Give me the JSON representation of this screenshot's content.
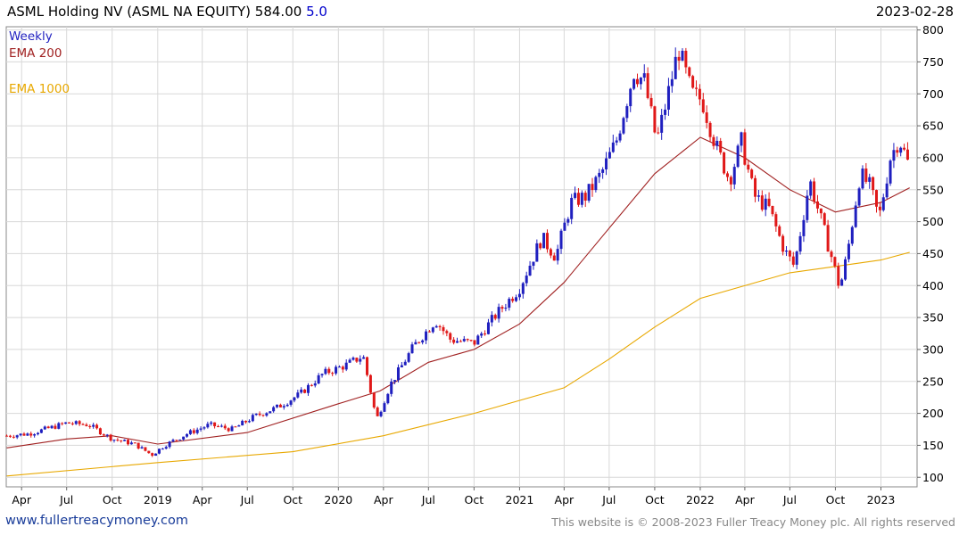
{
  "header": {
    "title": "ASML Holding NV (ASML NA EQUITY) 584.00",
    "change": "5.0",
    "date": "2023-02-28"
  },
  "footer": {
    "link": "www.fullertreacymoney.com",
    "copyright": "This website is © 2008-2023 Fuller Treacy Money plc. All rights reserved"
  },
  "colors": {
    "up": "#1f1fbf",
    "down": "#e01818",
    "ema200": "#a02020",
    "ema1000": "#e8a800",
    "grid": "#d8d8d8"
  },
  "chart_data": {
    "type": "candlestick",
    "frequency_label": "Weekly",
    "y_axis": {
      "range": [
        85,
        805
      ],
      "ticks": [
        100,
        150,
        200,
        250,
        300,
        350,
        400,
        450,
        500,
        550,
        600,
        650,
        700,
        750,
        800
      ],
      "position": "right"
    },
    "x_axis": {
      "range": [
        "2018-03-01",
        "2023-03-15"
      ],
      "ticks": [
        {
          "date": "2018-04-01",
          "label": "Apr"
        },
        {
          "date": "2018-07-01",
          "label": "Jul"
        },
        {
          "date": "2018-10-01",
          "label": "Oct"
        },
        {
          "date": "2019-01-01",
          "label": "2019"
        },
        {
          "date": "2019-04-01",
          "label": "Apr"
        },
        {
          "date": "2019-07-01",
          "label": "Jul"
        },
        {
          "date": "2019-10-01",
          "label": "Oct"
        },
        {
          "date": "2020-01-01",
          "label": "2020"
        },
        {
          "date": "2020-04-01",
          "label": "Apr"
        },
        {
          "date": "2020-07-01",
          "label": "Jul"
        },
        {
          "date": "2020-10-01",
          "label": "Oct"
        },
        {
          "date": "2021-01-01",
          "label": "2021"
        },
        {
          "date": "2021-04-01",
          "label": "Apr"
        },
        {
          "date": "2021-07-01",
          "label": "Jul"
        },
        {
          "date": "2021-10-01",
          "label": "Oct"
        },
        {
          "date": "2022-01-01",
          "label": "2022"
        },
        {
          "date": "2022-04-01",
          "label": "Apr"
        },
        {
          "date": "2022-07-01",
          "label": "Jul"
        },
        {
          "date": "2022-10-01",
          "label": "Oct"
        },
        {
          "date": "2023-01-01",
          "label": "2023"
        }
      ]
    },
    "price_path": [
      {
        "date": "2018-03-02",
        "close": 165
      },
      {
        "date": "2018-04-15",
        "close": 168
      },
      {
        "date": "2018-06-01",
        "close": 178
      },
      {
        "date": "2018-07-01",
        "close": 185
      },
      {
        "date": "2018-08-15",
        "close": 182
      },
      {
        "date": "2018-10-01",
        "close": 160
      },
      {
        "date": "2018-11-15",
        "close": 152
      },
      {
        "date": "2018-12-20",
        "close": 135
      },
      {
        "date": "2019-01-15",
        "close": 150
      },
      {
        "date": "2019-03-01",
        "close": 168
      },
      {
        "date": "2019-04-15",
        "close": 182
      },
      {
        "date": "2019-06-01",
        "close": 175
      },
      {
        "date": "2019-07-15",
        "close": 195
      },
      {
        "date": "2019-09-01",
        "close": 210
      },
      {
        "date": "2019-10-15",
        "close": 230
      },
      {
        "date": "2019-12-01",
        "close": 262
      },
      {
        "date": "2020-01-15",
        "close": 275
      },
      {
        "date": "2020-02-20",
        "close": 290
      },
      {
        "date": "2020-03-18",
        "close": 190
      },
      {
        "date": "2020-04-15",
        "close": 245
      },
      {
        "date": "2020-06-01",
        "close": 305
      },
      {
        "date": "2020-07-15",
        "close": 345
      },
      {
        "date": "2020-08-15",
        "close": 315
      },
      {
        "date": "2020-10-01",
        "close": 310
      },
      {
        "date": "2020-11-15",
        "close": 355
      },
      {
        "date": "2020-12-31",
        "close": 395
      },
      {
        "date": "2021-02-15",
        "close": 475
      },
      {
        "date": "2021-03-15",
        "close": 445
      },
      {
        "date": "2021-04-15",
        "close": 530
      },
      {
        "date": "2021-05-15",
        "close": 540
      },
      {
        "date": "2021-06-15",
        "close": 575
      },
      {
        "date": "2021-07-15",
        "close": 625
      },
      {
        "date": "2021-08-20",
        "close": 735
      },
      {
        "date": "2021-09-10",
        "close": 720
      },
      {
        "date": "2021-10-05",
        "close": 625
      },
      {
        "date": "2021-10-25",
        "close": 690
      },
      {
        "date": "2021-11-18",
        "close": 770
      },
      {
        "date": "2021-12-15",
        "close": 700
      },
      {
        "date": "2022-01-05",
        "close": 690
      },
      {
        "date": "2022-02-01",
        "close": 620
      },
      {
        "date": "2022-03-01",
        "close": 565
      },
      {
        "date": "2022-03-25",
        "close": 625
      },
      {
        "date": "2022-04-20",
        "close": 540
      },
      {
        "date": "2022-05-20",
        "close": 520
      },
      {
        "date": "2022-06-20",
        "close": 455
      },
      {
        "date": "2022-07-10",
        "close": 430
      },
      {
        "date": "2022-08-10",
        "close": 565
      },
      {
        "date": "2022-09-01",
        "close": 505
      },
      {
        "date": "2022-09-25",
        "close": 440
      },
      {
        "date": "2022-10-10",
        "close": 395
      },
      {
        "date": "2022-10-25",
        "close": 450
      },
      {
        "date": "2022-11-20",
        "close": 575
      },
      {
        "date": "2022-12-10",
        "close": 555
      },
      {
        "date": "2022-12-28",
        "close": 505
      },
      {
        "date": "2023-01-20",
        "close": 600
      },
      {
        "date": "2023-02-07",
        "close": 630
      },
      {
        "date": "2023-02-28",
        "close": 584
      }
    ],
    "series": [
      {
        "name": "EMA 200",
        "values": [
          {
            "date": "2018-03-02",
            "value": 146
          },
          {
            "date": "2018-07-01",
            "value": 160
          },
          {
            "date": "2018-10-01",
            "value": 165
          },
          {
            "date": "2019-01-01",
            "value": 152
          },
          {
            "date": "2019-07-01",
            "value": 170
          },
          {
            "date": "2020-01-01",
            "value": 215
          },
          {
            "date": "2020-03-25",
            "value": 235
          },
          {
            "date": "2020-07-01",
            "value": 280
          },
          {
            "date": "2020-10-01",
            "value": 300
          },
          {
            "date": "2021-01-01",
            "value": 340
          },
          {
            "date": "2021-04-01",
            "value": 405
          },
          {
            "date": "2021-07-01",
            "value": 490
          },
          {
            "date": "2021-10-01",
            "value": 575
          },
          {
            "date": "2022-01-01",
            "value": 632
          },
          {
            "date": "2022-04-01",
            "value": 600
          },
          {
            "date": "2022-07-01",
            "value": 550
          },
          {
            "date": "2022-10-01",
            "value": 515
          },
          {
            "date": "2023-01-01",
            "value": 530
          },
          {
            "date": "2023-02-28",
            "value": 553
          }
        ]
      },
      {
        "name": "EMA 1000",
        "values": [
          {
            "date": "2018-03-02",
            "value": 102
          },
          {
            "date": "2019-01-01",
            "value": 123
          },
          {
            "date": "2019-10-01",
            "value": 140
          },
          {
            "date": "2020-04-01",
            "value": 165
          },
          {
            "date": "2020-10-01",
            "value": 200
          },
          {
            "date": "2021-04-01",
            "value": 240
          },
          {
            "date": "2021-07-01",
            "value": 285
          },
          {
            "date": "2021-10-01",
            "value": 335
          },
          {
            "date": "2022-01-01",
            "value": 380
          },
          {
            "date": "2022-07-01",
            "value": 420
          },
          {
            "date": "2022-10-01",
            "value": 430
          },
          {
            "date": "2023-01-01",
            "value": 440
          },
          {
            "date": "2023-02-28",
            "value": 452
          }
        ]
      }
    ]
  }
}
